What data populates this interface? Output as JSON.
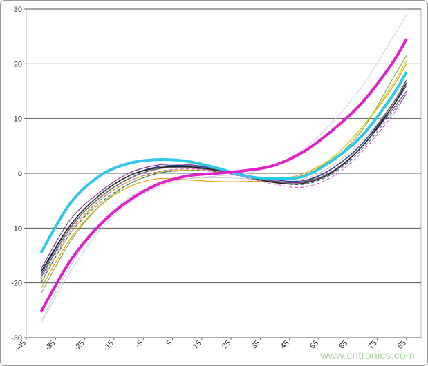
{
  "chart_data": {
    "type": "line",
    "x": [
      -40,
      -30,
      -20,
      -10,
      0,
      10,
      20,
      30,
      40,
      50,
      60,
      70,
      80,
      85
    ],
    "xlim": [
      -45,
      90
    ],
    "xticks": [
      -45,
      -35,
      -25,
      -15,
      -5,
      5,
      15,
      25,
      35,
      45,
      55,
      65,
      75,
      85
    ],
    "ylim": [
      -30,
      30
    ],
    "yticks": [
      -30,
      -20,
      -10,
      0,
      10,
      20,
      30
    ],
    "grid": true,
    "watermark": "www.cntronics.com",
    "series": [
      {
        "color": "#ccccf0",
        "width": 1,
        "values": [
          -27.5,
          -18,
          -10.5,
          -5.5,
          -2.5,
          -1,
          -0.5,
          0,
          1.5,
          4.5,
          9.5,
          16,
          24.5,
          29
        ]
      },
      {
        "color": "#c8c8c8",
        "width": 1,
        "values": [
          -27,
          -17,
          -9.5,
          -4.5,
          -2,
          -1,
          -0.8,
          -1,
          -1.5,
          -1,
          1.5,
          6,
          12.5,
          16.5
        ]
      },
      {
        "color": "#7a9a40",
        "width": 1,
        "values": [
          -22,
          -12.5,
          -6,
          -2,
          0,
          0.5,
          0.3,
          -0.5,
          -1,
          -0.5,
          2.5,
          8,
          17,
          21.5
        ]
      },
      {
        "color": "#e0a000",
        "width": 1.2,
        "values": [
          -21,
          -12,
          -6,
          -2.5,
          -1,
          -1.2,
          -1.5,
          -1.5,
          -1.2,
          0,
          3,
          8.5,
          15.5,
          20
        ]
      },
      {
        "color": "#d8d000",
        "width": 1.2,
        "values": [
          -20,
          -11,
          -5,
          -1.5,
          0.2,
          0.6,
          0.3,
          -0.5,
          -1,
          -0.3,
          3,
          8.5,
          16,
          20.5
        ]
      },
      {
        "color": "#606060",
        "width": 1.5,
        "values": [
          -19,
          -10,
          -4.5,
          -1,
          0.8,
          1,
          0.5,
          -0.5,
          -1.5,
          -1.5,
          1,
          5.5,
          12.5,
          17
        ]
      },
      {
        "color": "#2040a0",
        "width": 1.2,
        "values": [
          -18.5,
          -9.5,
          -4,
          -0.5,
          1.2,
          1.4,
          0.8,
          -0.3,
          -1.2,
          -1.3,
          1,
          5.5,
          12,
          16
        ]
      },
      {
        "color": "#803080",
        "width": 1.2,
        "values": [
          -17.5,
          -8.5,
          -3.5,
          0,
          1.5,
          1.6,
          0.9,
          -0.3,
          -1.4,
          -1.6,
          0.5,
          5,
          11.5,
          15
        ]
      },
      {
        "color": "#208080",
        "width": 1.2,
        "dash": true,
        "values": [
          -20,
          -11,
          -5.5,
          -2,
          0,
          0.5,
          0.3,
          -0.6,
          -1.6,
          -2,
          0,
          4.5,
          11,
          14.5
        ]
      },
      {
        "color": "#e040e0",
        "width": 1,
        "dash": true,
        "values": [
          -19.5,
          -10.5,
          -5,
          -1.5,
          0.3,
          0.8,
          0.4,
          -0.8,
          -2,
          -2.5,
          -0.5,
          4,
          10.5,
          14.5
        ]
      },
      {
        "color": "#202020",
        "width": 1.5,
        "values": [
          -18,
          -9.5,
          -4,
          -0.5,
          1,
          1.2,
          0.6,
          -0.6,
          -1.7,
          -1.8,
          0.3,
          5,
          12,
          16.5
        ]
      },
      {
        "color": "#30c8e8",
        "width": 4,
        "values": [
          -14.5,
          -5.5,
          -0.5,
          1.8,
          2.5,
          2.2,
          1,
          -0.5,
          -1,
          -0.5,
          2.5,
          7,
          14,
          18.5
        ]
      },
      {
        "color": "#e020c8",
        "width": 4,
        "values": [
          -25.3,
          -16,
          -9.5,
          -5,
          -2,
          -0.5,
          0,
          0.5,
          1.5,
          4,
          8,
          13,
          20,
          24.5
        ]
      }
    ]
  }
}
